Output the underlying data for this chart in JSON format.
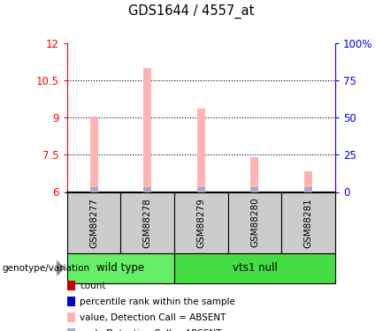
{
  "title": "GDS1644 / 4557_at",
  "samples": [
    "GSM88277",
    "GSM88278",
    "GSM88279",
    "GSM88280",
    "GSM88281"
  ],
  "bar_values": [
    9.05,
    11.0,
    9.35,
    7.42,
    6.85
  ],
  "bar_base": 6.0,
  "ylim_left": [
    6,
    12
  ],
  "ylim_right": [
    0,
    100
  ],
  "yticks_left": [
    6,
    7.5,
    9,
    10.5,
    12
  ],
  "ytick_labels_left": [
    "6",
    "7.5",
    "9",
    "10.5",
    "12"
  ],
  "yticks_right": [
    0,
    25,
    50,
    75,
    100
  ],
  "ytick_labels_right": [
    "0",
    "25",
    "50",
    "75",
    "100%"
  ],
  "bar_color": "#FFB3B3",
  "rank_bar_color": "#AAAACC",
  "genotype_groups": [
    {
      "label": "wild type",
      "samples": [
        0,
        1
      ],
      "color": "#66EE66"
    },
    {
      "label": "vts1 null",
      "samples": [
        2,
        3,
        4
      ],
      "color": "#44DD44"
    }
  ],
  "legend_items": [
    {
      "label": "count",
      "color": "#CC0000"
    },
    {
      "label": "percentile rank within the sample",
      "color": "#0000CC"
    },
    {
      "label": "value, Detection Call = ABSENT",
      "color": "#FFB3B3"
    },
    {
      "label": "rank, Detection Call = ABSENT",
      "color": "#AAAACC"
    }
  ],
  "genotype_label": "genotype/variation",
  "dotted_yticks": [
    7.5,
    9,
    10.5
  ],
  "bar_width": 0.15,
  "rank_bar_height": 0.18
}
